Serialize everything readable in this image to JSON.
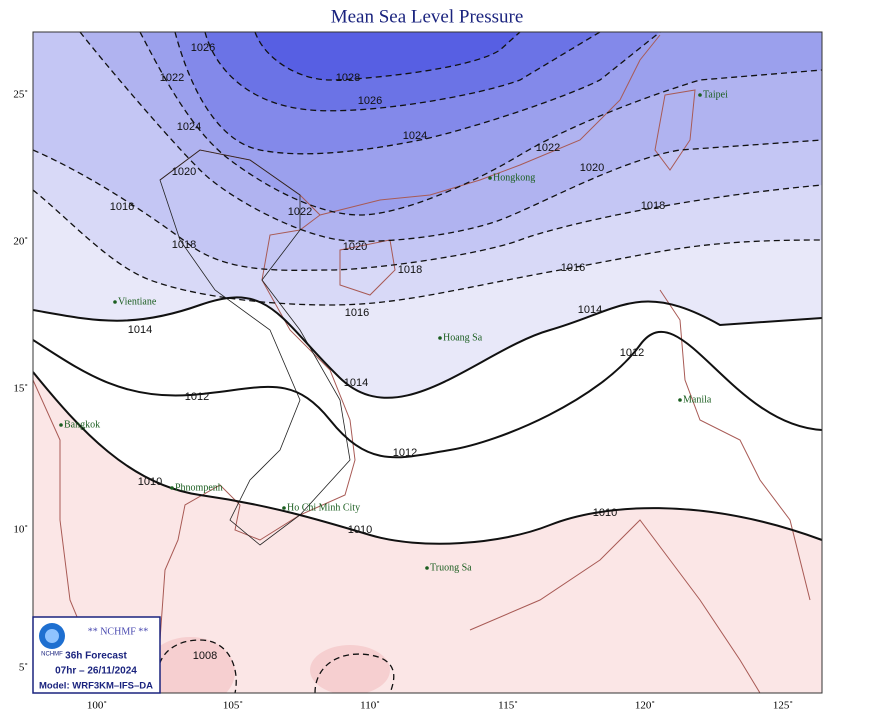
{
  "title": "Mean Sea Level Pressure",
  "lon_ticks": [
    "100˚",
    "105˚",
    "110˚",
    "115˚",
    "120˚",
    "125˚"
  ],
  "lat_ticks": [
    "25˚",
    "20˚",
    "15˚",
    "10˚",
    "5˚"
  ],
  "places": [
    "Taipei",
    "Hongkong",
    "Vientiane",
    "Hoang Sa",
    "Manila",
    "Bangkok",
    "Phnompenh",
    "Ho Chi Minh City",
    "Truong Sa"
  ],
  "isobar_labels": [
    1028,
    1026,
    1024,
    1022,
    1020,
    1018,
    1016,
    1014,
    1012,
    1010,
    1026,
    1022,
    1024,
    1020,
    1016,
    1018,
    1020,
    1018,
    1016,
    1014,
    1012,
    1014,
    1012,
    1010,
    1010,
    1008,
    1022
  ],
  "logo": {
    "agency": "** NCHMF **",
    "mark": "NCHMF",
    "forecast": "36h Forecast",
    "time": "07hr – 26/11/2024",
    "model": "Model: WRF3KM–IFS–DA"
  }
}
